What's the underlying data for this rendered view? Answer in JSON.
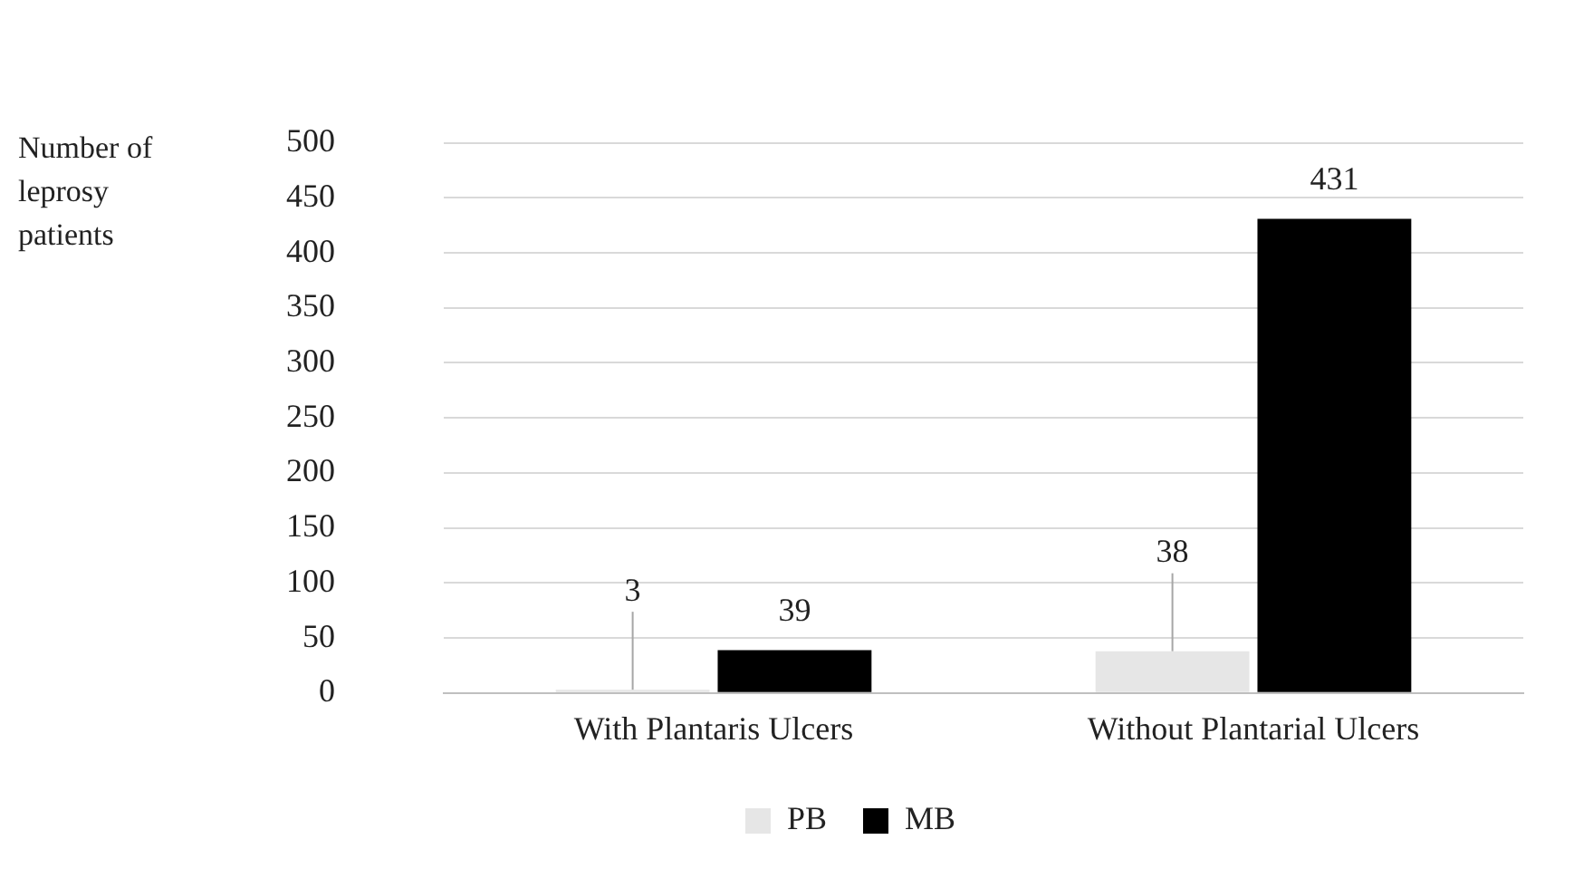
{
  "chart_data": {
    "type": "bar",
    "ylabel": "Number of leprosy patients",
    "categories": [
      "With Plantaris Ulcers",
      "Without Plantarial Ulcers"
    ],
    "series": [
      {
        "name": "PB",
        "color": "#e6e6e6",
        "values": [
          3,
          38
        ]
      },
      {
        "name": "MB",
        "color": "#000000",
        "values": [
          39,
          431
        ]
      }
    ],
    "ylim": [
      0,
      500
    ],
    "yticks": [
      0,
      50,
      100,
      150,
      200,
      250,
      300,
      350,
      400,
      450,
      500
    ],
    "grid": "y",
    "legend": "bottom",
    "data_labels": true
  }
}
